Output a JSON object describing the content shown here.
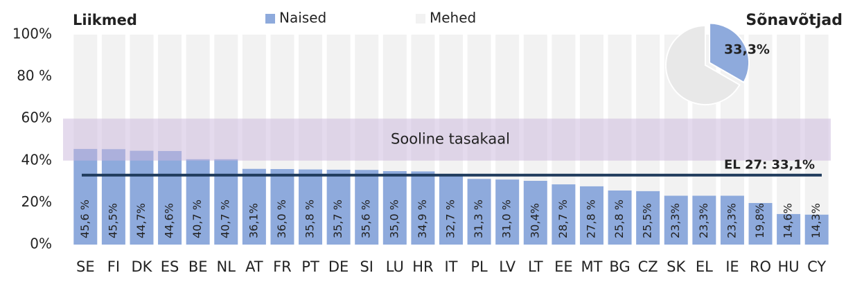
{
  "chart_data": [
    {
      "type": "bar",
      "stacked": true,
      "title": "Liikmed",
      "categories": [
        "SE",
        "FI",
        "DK",
        "ES",
        "BE",
        "NL",
        "AT",
        "FR",
        "PT",
        "DE",
        "SI",
        "LU",
        "HR",
        "IT",
        "PL",
        "LV",
        "LT",
        "EE",
        "MT",
        "BG",
        "CZ",
        "SK",
        "EL",
        "IE",
        "RO",
        "HU",
        "CY"
      ],
      "series": [
        {
          "name": "Naised",
          "color": "#8eaadc",
          "values": [
            45.6,
            45.5,
            44.7,
            44.6,
            40.7,
            40.7,
            36.1,
            36.0,
            35.8,
            35.7,
            35.6,
            35.0,
            34.9,
            32.7,
            31.3,
            31.0,
            30.4,
            28.7,
            27.8,
            25.8,
            25.5,
            23.3,
            23.3,
            23.3,
            19.8,
            14.6,
            14.3
          ],
          "value_labels": [
            "45,6 %",
            "45,5%",
            "44,7%",
            "44,6%",
            "40,7 %",
            "40,7 %",
            "36,1%",
            "36,0 %",
            "35,8 %",
            "35,7 %",
            "35,6 %",
            "35,0 %",
            "34,9 %",
            "32,7 %",
            "31,3 %",
            "31,0 %",
            "30,4%",
            "28,7 %",
            "27,8 %",
            "25,8 %",
            "25,5%",
            "23,3%",
            "23,3%",
            "23,3%",
            "19,8%",
            "14,6%",
            "14,3%"
          ]
        },
        {
          "name": "Mehed",
          "color": "#f2f2f2",
          "values": [
            54.4,
            54.5,
            55.3,
            55.4,
            59.3,
            59.3,
            63.9,
            64.0,
            64.2,
            64.3,
            64.4,
            65.0,
            65.1,
            67.3,
            68.7,
            69.0,
            69.6,
            71.3,
            72.2,
            74.2,
            74.5,
            76.7,
            76.7,
            76.7,
            80.2,
            85.4,
            85.7
          ]
        }
      ],
      "ylim": [
        0,
        100
      ],
      "yticks": [
        {
          "value": 0,
          "label": "0%"
        },
        {
          "value": 20,
          "label": "20%"
        },
        {
          "value": 40,
          "label": "40%"
        },
        {
          "value": 60,
          "label": "60%"
        },
        {
          "value": 80,
          "label": "80 %"
        },
        {
          "value": 100,
          "label": "100%"
        }
      ],
      "grid": false,
      "legend": "top",
      "annotations": [
        {
          "text": "Sooline tasakaal",
          "range": [
            40,
            60
          ],
          "color": "#c9b6dc"
        },
        {
          "text": "EL 27: 33,1%",
          "value": 33.1,
          "color": "#1f3b5c"
        }
      ]
    },
    {
      "type": "pie",
      "title": "Sõnavõtjad",
      "series": [
        {
          "name": "Naised",
          "color": "#8eaadc",
          "values": [
            33.3
          ],
          "value_labels": [
            "33,3%"
          ]
        },
        {
          "name": "Mehed",
          "color": "#e8e8e8",
          "values": [
            66.7
          ]
        }
      ]
    }
  ]
}
